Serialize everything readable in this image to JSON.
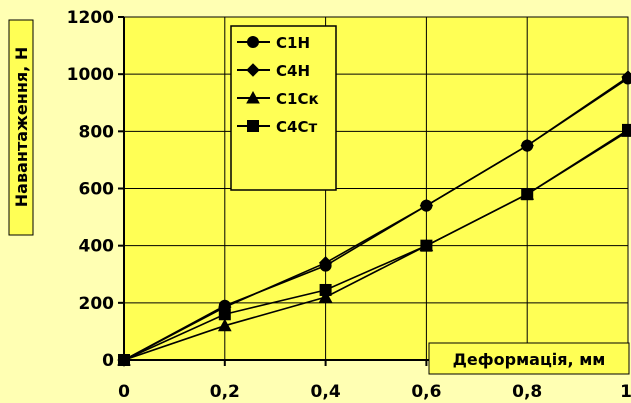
{
  "chart_data": {
    "type": "line",
    "title": "",
    "xlabel": "Деформація, мм",
    "ylabel": "Навантаження, Н",
    "x": [
      0,
      0.2,
      0.4,
      0.6,
      0.8,
      1
    ],
    "x_tick_labels": [
      "0",
      "0,2",
      "0,4",
      "0,6",
      "0,8",
      "1"
    ],
    "y_ticks": [
      0,
      200,
      400,
      600,
      800,
      1000,
      1200
    ],
    "xlim": [
      0,
      1
    ],
    "ylim": [
      0,
      1200
    ],
    "grid": true,
    "legend_position": "top-left",
    "series": [
      {
        "name": "С1Н",
        "marker": "circle",
        "values": [
          0,
          190,
          330,
          540,
          750,
          985
        ]
      },
      {
        "name": "С4Н",
        "marker": "diamond",
        "values": [
          0,
          185,
          340,
          540,
          750,
          990
        ]
      },
      {
        "name": "С1Ск",
        "marker": "triangle",
        "values": [
          0,
          120,
          220,
          400,
          580,
          800
        ]
      },
      {
        "name": "С4Ст",
        "marker": "square",
        "values": [
          0,
          160,
          245,
          400,
          580,
          805
        ]
      }
    ],
    "colors": {
      "background": "#FFFFB3",
      "plot_area": "#FFFF55",
      "series": "#000000"
    }
  }
}
